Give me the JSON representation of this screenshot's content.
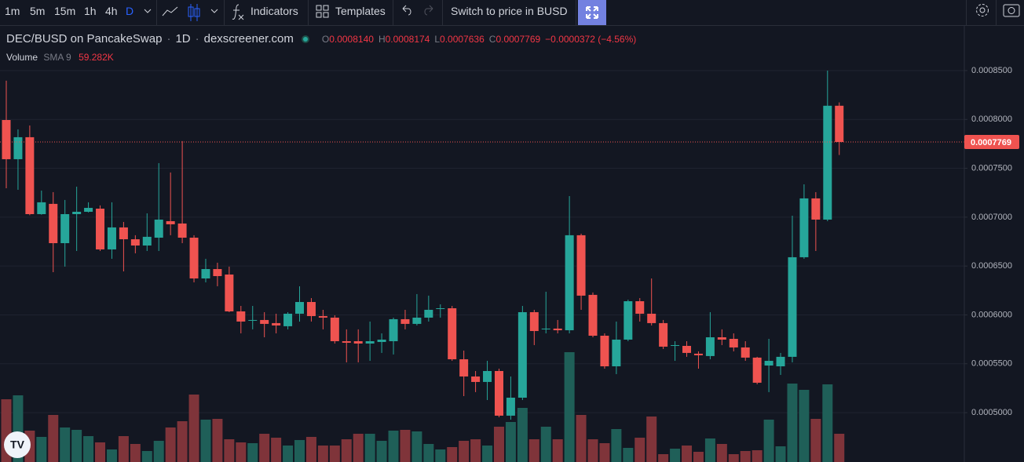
{
  "toolbar": {
    "intervals": [
      "1m",
      "5m",
      "15m",
      "1h",
      "4h",
      "D"
    ],
    "indicators": "Indicators",
    "templates": "Templates",
    "switch": "Switch to price in BUSD"
  },
  "chart_data": {
    "type": "candlestick",
    "symbol": "DEC/BUSD on PancakeSwap",
    "interval": "1D",
    "source": "dexscreener.com",
    "ohlc_legend": [
      {
        "key": "O",
        "value": "0.0008140"
      },
      {
        "key": "H",
        "value": "0.0008174"
      },
      {
        "key": "L",
        "value": "0.0007636"
      },
      {
        "key": "C",
        "value": "0.0007769"
      }
    ],
    "change": "−0.0000372 (−4.56%)",
    "volume_label": "Volume",
    "sma_label": "SMA 9",
    "sma_value": "59.282K",
    "up_color": "#26a69a",
    "down_color": "#ef5350",
    "volume_up_color": "#1f5f58",
    "volume_down_color": "#7f343a",
    "grid": true,
    "ylim": [
      0.0004495,
      0.0008957
    ],
    "yticks": [
      {
        "value": 0.0005,
        "label": "0.0005000"
      },
      {
        "value": 0.00055,
        "label": "0.0005500"
      },
      {
        "value": 0.0006,
        "label": "0.0006000"
      },
      {
        "value": 0.00065,
        "label": "0.0006500"
      },
      {
        "value": 0.0007,
        "label": "0.0007000"
      },
      {
        "value": 0.00075,
        "label": "0.0007500"
      },
      {
        "value": 0.0008,
        "label": "0.0008000"
      },
      {
        "value": 0.00085,
        "label": "0.0008500"
      }
    ],
    "open": [
      0.0007994,
      0.0007593,
      0.0007818,
      0.0007031,
      0.0007136,
      0.0006734,
      0.0007031,
      0.0007055,
      0.0007087,
      0.000667,
      0.0006895,
      0.0006774,
      0.000671,
      0.000679,
      0.0006959,
      0.0006935,
      0.000679,
      0.0006373,
      0.0006469,
      0.0006413,
      0.0006036,
      0.000594,
      0.0005948,
      0.0005916,
      0.0005884,
      0.0006012,
      0.0006132,
      0.0005988,
      0.0005972,
      0.0005731,
      0.0005731,
      0.0005707,
      0.0005723,
      0.0005731,
      0.0005956,
      0.0005908,
      0.0005972,
      0.000606,
      0.0006068,
      0.0005546,
      0.000537,
      0.0005314,
      0.0005426,
      0.0004969,
      0.0005153,
      0.0006028,
      0.0005852,
      0.000586,
      0.0005843,
      0.0006815,
      0.0006205,
      0.0005787,
      0.0005474,
      0.0005747,
      0.000614,
      0.0006012,
      0.0005916,
      0.0005683,
      0.0005683,
      0.0005603,
      0.0005579,
      0.0005771,
      0.0005755,
      0.0005667,
      0.0005563,
      0.0005482,
      0.0005474,
      0.0005571,
      0.000659,
      0.0007192,
      0.0006975,
      0.000814
    ],
    "high": [
      0.0008396,
      0.0007898,
      0.0007938,
      0.0007272,
      0.0007256,
      0.0007176,
      0.0007312,
      0.0007152,
      0.000712,
      0.0007152,
      0.0006951,
      0.0006815,
      0.0007039,
      0.0007553,
      0.0007457,
      0.0007778,
      0.0006815,
      0.0006574,
      0.0006534,
      0.0006494,
      0.0006092,
      0.0006092,
      0.0006028,
      0.0006012,
      0.0006028,
      0.0006293,
      0.0006172,
      0.0006052,
      0.0005996,
      0.0005852,
      0.0005852,
      0.0005932,
      0.0005811,
      0.0005972,
      0.0006052,
      0.0006213,
      0.0006197,
      0.0006108,
      0.0006092,
      0.0005635,
      0.0005426,
      0.000553,
      0.000545,
      0.000537,
      0.0006092,
      0.0006052,
      0.0006237,
      0.0005948,
      0.0007216,
      0.0006831,
      0.0006229,
      0.0005811,
      0.0005932,
      0.0006156,
      0.0006172,
      0.0006373,
      0.0005948,
      0.0005731,
      0.0005731,
      0.0005627,
      0.0006028,
      0.0005852,
      0.0005811,
      0.0005731,
      0.0005571,
      0.0005755,
      0.0005611,
      0.0007015,
      0.0007336,
      0.0007256,
      0.00085,
      0.0008174
    ],
    "low": [
      0.0007296,
      0.000728,
      0.000702,
      0.0007025,
      0.0006437,
      0.0006494,
      0.0006654,
      0.0007048,
      0.0006654,
      0.0006574,
      0.0006445,
      0.000663,
      0.0006654,
      0.0006654,
      0.0006815,
      0.0006734,
      0.0006333,
      0.0006333,
      0.0006293,
      0.0006028,
      0.0005811,
      0.0005852,
      0.0005771,
      0.0005811,
      0.0005852,
      0.0005932,
      0.0005932,
      0.0005852,
      0.0005707,
      0.0005514,
      0.0005514,
      0.000553,
      0.0005611,
      0.0005595,
      0.0005852,
      0.0005892,
      0.0005932,
      0.0005972,
      0.000553,
      0.0005169,
      0.000521,
      0.0005129,
      0.0004953,
      0.0004928,
      0.0005129,
      0.0005691,
      0.0005811,
      0.0005811,
      0.0005811,
      0.0006052,
      0.0005771,
      0.000545,
      0.0005394,
      0.0005731,
      0.0005932,
      0.0005892,
      0.0005651,
      0.000553,
      0.0005571,
      0.000545,
      0.0005546,
      0.0005691,
      0.0005627,
      0.000553,
      0.000529,
      0.000521,
      0.0005386,
      0.0005514,
      0.0006574,
      0.0006654,
      0.0006959,
      0.0007636
    ],
    "close": [
      0.0007593,
      0.0007818,
      0.0007031,
      0.0007152,
      0.0006734,
      0.0007031,
      0.0007055,
      0.0007095,
      0.000667,
      0.0006895,
      0.0006774,
      0.000671,
      0.0006799,
      0.0006975,
      0.0006927,
      0.000679,
      0.0006373,
      0.0006469,
      0.0006397,
      0.0006036,
      0.0005932,
      0.0005948,
      0.0005908,
      0.0005892,
      0.0006012,
      0.0006132,
      0.0005988,
      0.0005972,
      0.0005731,
      0.0005715,
      0.0005707,
      0.0005731,
      0.0005747,
      0.0005956,
      0.0005908,
      0.0005972,
      0.0006052,
      0.0006068,
      0.0005546,
      0.000537,
      0.0005314,
      0.0005426,
      0.0004969,
      0.0005153,
      0.0006028,
      0.0005835,
      0.000586,
      0.0005843,
      0.0006815,
      0.0006197,
      0.0005787,
      0.0005474,
      0.0005747,
      0.000614,
      0.0006012,
      0.0005916,
      0.0005675,
      0.0005691,
      0.0005611,
      0.0005587,
      0.0005771,
      0.0005747,
      0.0005667,
      0.0005563,
      0.0005306,
      0.000553,
      0.0005571,
      0.000659,
      0.0007192,
      0.0006975,
      0.000814,
      0.0007769
    ],
    "volume": [
      88000,
      93500,
      44000,
      35200,
      66000,
      48400,
      45100,
      36300,
      27500,
      17600,
      36300,
      25300,
      15400,
      29700,
      48400,
      57200,
      94600,
      59400,
      60500,
      31900,
      27500,
      26400,
      39600,
      34100,
      23100,
      30800,
      35200,
      23100,
      23100,
      31900,
      39600,
      39600,
      29700,
      44000,
      45100,
      42900,
      25300,
      17600,
      20900,
      29700,
      31900,
      23100,
      49500,
      56100,
      75900,
      31900,
      49500,
      31900,
      154000,
      66000,
      31900,
      26400,
      46200,
      19800,
      34100,
      63800,
      11000,
      18700,
      23100,
      14300,
      33000,
      25300,
      11000,
      15400,
      16500,
      59400,
      22000,
      110000,
      101200,
      60500,
      108900,
      39600
    ]
  }
}
